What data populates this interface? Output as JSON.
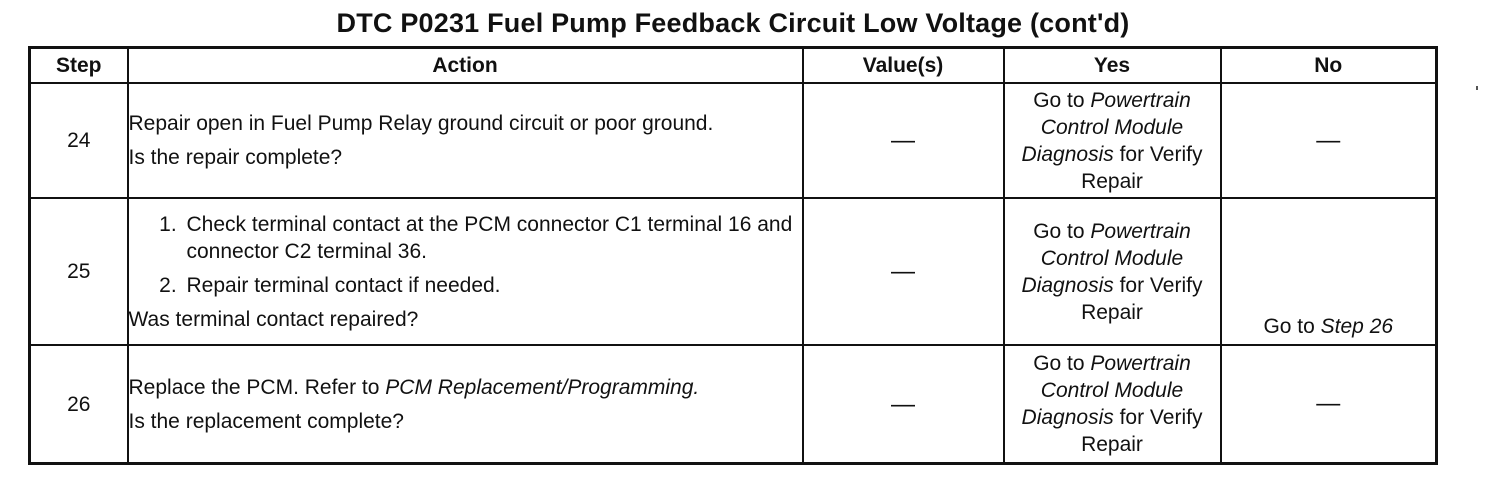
{
  "title": "DTC P0231 Fuel Pump Feedback Circuit Low Voltage  (cont'd)",
  "headers": {
    "step": "Step",
    "action": "Action",
    "values": "Value(s)",
    "yes": "Yes",
    "no": "No"
  },
  "rows": [
    {
      "step": "24",
      "action_line1": "Repair open in Fuel Pump Relay ground circuit or poor ground.",
      "action_question": "Is the repair complete?",
      "value": "—",
      "yes_prefix": "Go to",
      "yes_link": "Powertrain Control Module Diagnosis",
      "yes_suffix": "for Verify Repair",
      "no": "—"
    },
    {
      "step": "25",
      "action_items": [
        "Check terminal contact at the PCM connector C1 terminal 16 and connector C2 terminal 36.",
        "Repair terminal contact if needed."
      ],
      "action_question": "Was terminal contact repaired?",
      "value": "—",
      "yes_prefix": "Go to",
      "yes_link": "Powertrain Control Module Diagnosis",
      "yes_suffix": "for Verify Repair",
      "no_prefix": "Go to",
      "no_link": "Step 26"
    },
    {
      "step": "26",
      "action_line1_prefix": "Replace the PCM. Refer to",
      "action_line1_link": "PCM Replacement/Programming.",
      "action_question": "Is the replacement complete?",
      "value": "—",
      "yes_prefix": "Go to",
      "yes_link": "Powertrain Control Module Diagnosis",
      "yes_suffix": "for Verify Repair",
      "no": "—"
    }
  ]
}
